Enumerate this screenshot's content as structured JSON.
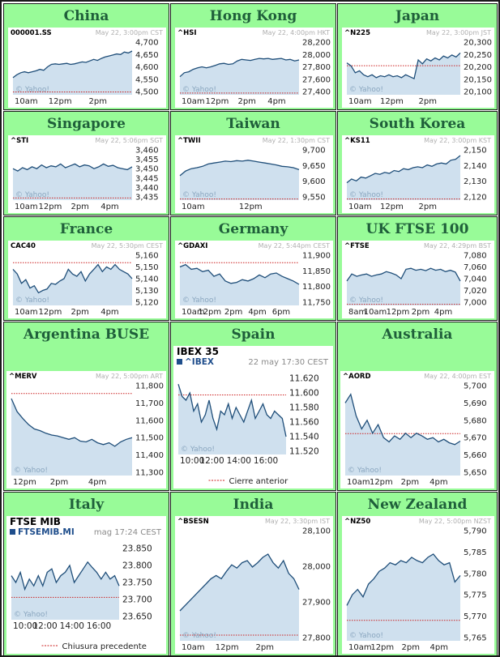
{
  "colors": {
    "cell_bg": "#98fb98",
    "title": "#1f5f3a",
    "line": "#1f4e79",
    "fill": "#cfe0ee",
    "prev_close": "#cc2222",
    "watermark": "#8aa6bf"
  },
  "watermark": "© Yahoo!",
  "cells": [
    {
      "title": "China",
      "symbol": "000001.SS",
      "meta": "May 22, 3:00pm CST",
      "yticks": [
        "4,700",
        "4,650",
        "4,600",
        "4,550",
        "4,500"
      ],
      "xticks": [
        "10am",
        "12pm",
        "2pm"
      ]
    },
    {
      "title": "Hong Kong",
      "symbol": "^HSI",
      "meta": "May 22, 4:00pm HKT",
      "yticks": [
        "28,200",
        "28,000",
        "27,800",
        "27,600",
        "27,400"
      ],
      "xticks": [
        "10am",
        "12pm",
        "2pm",
        "4pm"
      ]
    },
    {
      "title": "Japan",
      "symbol": "^N225",
      "meta": "May 22, 3:00pm JST",
      "yticks": [
        "20,300",
        "20,250",
        "20,200",
        "20,150",
        "20,100"
      ],
      "xticks": [
        "10am",
        "12pm",
        "2pm"
      ]
    },
    {
      "title": "Singapore",
      "symbol": "^STI",
      "meta": "May 22, 5:06pm SGT",
      "yticks": [
        "3,460",
        "3,455",
        "3,450",
        "3,445",
        "3,440",
        "3,435"
      ],
      "xticks": [
        "10am",
        "12pm",
        "2pm",
        "4pm"
      ]
    },
    {
      "title": "Taiwan",
      "symbol": "^TWII",
      "meta": "May 22, 1:30pm CST",
      "yticks": [
        "9,700",
        "9,650",
        "9,600",
        "9,550"
      ],
      "xticks": [
        "10am",
        "12pm"
      ]
    },
    {
      "title": "South Korea",
      "symbol": "^KS11",
      "meta": "May 22, 3:00pm KST",
      "yticks": [
        "2,150",
        "2,140",
        "2,130",
        "2,120"
      ],
      "xticks": [
        "10am",
        "12pm",
        "2pm"
      ]
    },
    {
      "title": "France",
      "symbol": "CAC40",
      "meta": "May 22, 5:30pm CEST",
      "yticks": [
        "5,160",
        "5,150",
        "5,140",
        "5,130",
        "5,120"
      ],
      "xticks": [
        "10am",
        "12pm",
        "2pm",
        "4pm"
      ]
    },
    {
      "title": "Germany",
      "symbol": "^GDAXI",
      "meta": "May 22, 5:44pm CEST",
      "yticks": [
        "11,900",
        "11,850",
        "11,800",
        "11,750"
      ],
      "xticks": [
        "10am",
        "12pm",
        "2pm",
        "4pm",
        "6pm"
      ]
    },
    {
      "title": "UK FTSE 100",
      "symbol": "^FTSE",
      "meta": "May 22, 4:29pm BST",
      "yticks": [
        "7,080",
        "7,060",
        "7,040",
        "7,020",
        "7,000"
      ],
      "xticks": [
        "8am",
        "10am",
        "12pm",
        "2pm",
        "4pm"
      ]
    },
    {
      "title": "Argentina BUSE",
      "symbol": "^MERV",
      "meta": "May 22, 5:00pm ART",
      "yticks": [
        "11,800",
        "11,700",
        "11,600",
        "11,500",
        "11,400",
        "11,300"
      ],
      "xticks": [
        "12pm",
        "2pm",
        "4pm"
      ]
    },
    {
      "title": "Spain",
      "name": "IBEX 35",
      "symbol": "^IBEX",
      "meta": "22 may 17:30 CEST",
      "yticks": [
        "11.620",
        "11.600",
        "11.580",
        "11.560",
        "11.540",
        "11.520"
      ],
      "xticks": [
        "10:00",
        "12:00",
        "14:00",
        "16:00"
      ],
      "legend": "Cierre anterior"
    },
    {
      "title": "Australia",
      "symbol": "^AORD",
      "meta": "May 22, 4:00pm EST",
      "yticks": [
        "5,700",
        "5,690",
        "5,680",
        "5,670",
        "5,660",
        "5,650"
      ],
      "xticks": [
        "10am",
        "12pm",
        "2pm",
        "4pm"
      ]
    },
    {
      "title": "Italy",
      "name": "FTSE MIB",
      "symbol": "FTSEMIB.MI",
      "meta": "mag 17:24 CEST",
      "yticks": [
        "23.850",
        "23.800",
        "23.750",
        "23.700",
        "23.650"
      ],
      "xticks": [
        "10:00",
        "12:00",
        "14:00",
        "16:00"
      ],
      "legend": "Chiusura precedente"
    },
    {
      "title": "India",
      "symbol": "^BSESN",
      "meta": "May 22, 3:30pm IST",
      "yticks": [
        "28,100",
        "28,000",
        "27,900",
        "27,800"
      ],
      "xticks": [
        "10am",
        "12pm",
        "2pm"
      ]
    },
    {
      "title": "New Zealand",
      "symbol": "^NZ50",
      "meta": "May 22, 5:00pm NZST",
      "yticks": [
        "5,790",
        "5,785",
        "5,780",
        "5,775",
        "5,770",
        "5,765"
      ],
      "xticks": [
        "10am",
        "12pm",
        "2pm",
        "4pm"
      ]
    }
  ]
}
